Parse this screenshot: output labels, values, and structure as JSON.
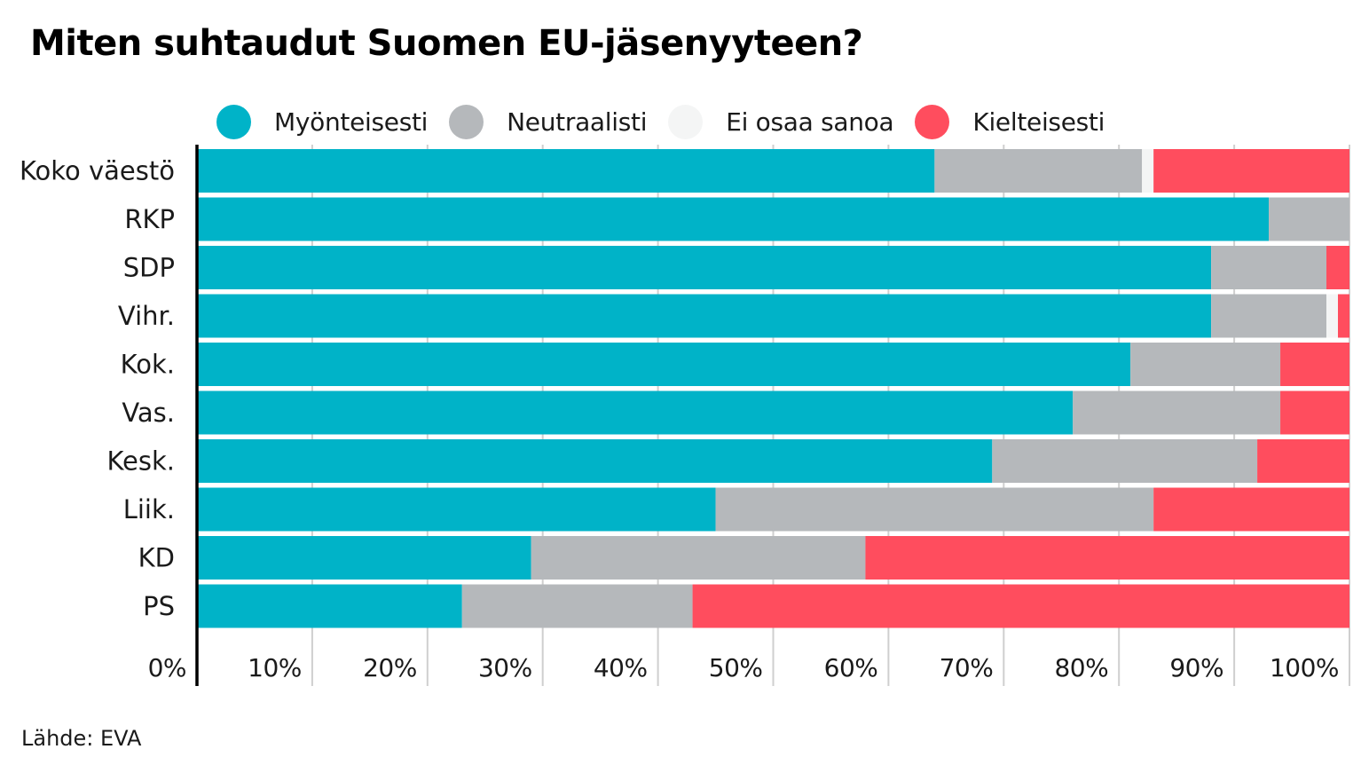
{
  "chart_data": {
    "type": "bar",
    "orientation": "horizontal",
    "stacked": true,
    "title": "Miten suhtaudut Suomen EU-jäsenyyteen?",
    "xlabel": "",
    "ylabel": "",
    "xlim": [
      0,
      100
    ],
    "x_ticks": [
      "0%",
      "10%",
      "20%",
      "30%",
      "40%",
      "50%",
      "60%",
      "70%",
      "80%",
      "90%",
      "100%"
    ],
    "x_tick_values": [
      0,
      10,
      20,
      30,
      40,
      50,
      60,
      70,
      80,
      90,
      100
    ],
    "grid": true,
    "legend_position": "top",
    "categories": [
      "Koko väestö",
      "RKP",
      "SDP",
      "Vihr.",
      "Kok.",
      "Vas.",
      "Kesk.",
      "Liik.",
      "KD",
      "PS"
    ],
    "series": [
      {
        "name": "Myönteisesti",
        "color": "#00b3c8",
        "values": [
          64,
          93,
          88,
          88,
          81,
          76,
          69,
          45,
          29,
          23
        ]
      },
      {
        "name": "Neutraalisti",
        "color": "#b5b8bb",
        "values": [
          18,
          7,
          10,
          10,
          13,
          18,
          23,
          38,
          29,
          20
        ]
      },
      {
        "name": "Ei osaa sanoa",
        "color": "#f4f5f5",
        "values": [
          1,
          0,
          0,
          1,
          0,
          0,
          0,
          0,
          0,
          0
        ]
      },
      {
        "name": "Kielteisesti",
        "color": "#ff4d5e",
        "values": [
          17,
          0,
          2,
          1,
          6,
          6,
          8,
          17,
          42,
          57
        ]
      }
    ],
    "source": "Lähde: EVA"
  }
}
